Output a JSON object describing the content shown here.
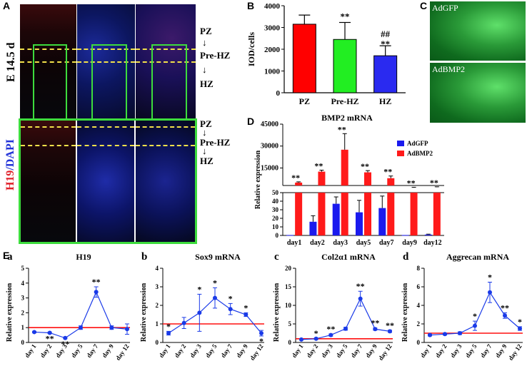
{
  "panel_labels": {
    "A": "A",
    "B": "B",
    "C": "C",
    "D": "D",
    "E": "E"
  },
  "panelA": {
    "side_label_stage": "E 14.5 d",
    "side_label_stain_h19": "H19",
    "side_label_stain_dapi": "/DAPI",
    "zones_top": [
      "PZ",
      "Pre-HZ",
      "HZ"
    ],
    "zones_bottom": [
      "PZ",
      "Pre-HZ",
      "HZ"
    ],
    "arrow": "↓",
    "colors": {
      "h19": "#e0202a",
      "dapi": "#2233d8",
      "box": "#3ddc3d",
      "dash": "#f2e04a"
    }
  },
  "panelB": {
    "chart_data": {
      "type": "bar",
      "categories": [
        "PZ",
        "Pre-HZ",
        "HZ"
      ],
      "values": [
        3150,
        2450,
        1700
      ],
      "errors": [
        420,
        780,
        460
      ],
      "colors": [
        "#ff0000",
        "#22ee22",
        "#2a2af0"
      ],
      "ylabel": "IOD/cells",
      "ylim": [
        0,
        4000
      ],
      "yticks": [
        "0",
        "1000",
        "2000",
        "3000",
        "4000"
      ],
      "annotations": [
        {
          "category": "Pre-HZ",
          "text": "**"
        },
        {
          "category": "HZ",
          "text": "##"
        },
        {
          "category": "HZ",
          "text": "**"
        }
      ]
    }
  },
  "panelC": {
    "labels": [
      "AdGFP",
      "AdBMP2"
    ]
  },
  "panelD": {
    "chart_data": {
      "type": "bar",
      "title": "BMP2 mRNA",
      "ylabel": "Relative expression",
      "categories": [
        "day1",
        "day2",
        "day3",
        "day5",
        "day7",
        "day9",
        "day12"
      ],
      "series": [
        {
          "name": "AdGFP",
          "color": "#1a1aee",
          "values": [
            0.5,
            16,
            37,
            27,
            32,
            0.5,
            1
          ],
          "errors": [
            0,
            7,
            8,
            14,
            14,
            0,
            0.5
          ]
        },
        {
          "name": "AdBMP2",
          "color": "#ff1a1a",
          "values": [
            5000,
            12500,
            27500,
            12000,
            8000,
            1500,
            1800
          ],
          "errors": [
            500,
            1000,
            11000,
            1200,
            1500,
            300,
            300
          ]
        }
      ],
      "broken_axis": true,
      "yticks_upper": [
        "15000",
        "30000",
        "45000"
      ],
      "yticks_lower": [
        "0",
        "10",
        "20",
        "30",
        "40",
        "50"
      ],
      "sig": [
        "**",
        "**",
        "**",
        "**",
        "**",
        "**",
        "**"
      ]
    }
  },
  "panelE": {
    "charts": [
      {
        "sub": "a",
        "title": "H19",
        "chart_data": {
          "type": "line",
          "ylabel": "Relative expression",
          "categories": [
            "day 1",
            "day 2",
            "day 3",
            "day 5",
            "day 7",
            "day 9",
            "day 12"
          ],
          "values": [
            0.7,
            0.65,
            0.3,
            1.0,
            3.4,
            1.0,
            0.9
          ],
          "errors": [
            0.05,
            0.05,
            0.05,
            0.12,
            0.35,
            0.12,
            0.35
          ],
          "ylim": [
            0,
            5
          ],
          "yticks": [
            "0",
            "1",
            "2",
            "3",
            "4",
            "5"
          ],
          "reference": 1,
          "sig": [
            "",
            "**",
            "**",
            "",
            "**",
            "",
            ""
          ]
        }
      },
      {
        "sub": "b",
        "title": "Sox9 mRNA",
        "chart_data": {
          "type": "line",
          "ylabel": "Relative expression",
          "categories": [
            "day 1",
            "day 2",
            "day 3",
            "day 5",
            "day 7",
            "day 9",
            "day 12"
          ],
          "values": [
            0.5,
            1.05,
            1.6,
            2.4,
            1.8,
            1.5,
            0.5
          ],
          "errors": [
            0.1,
            0.3,
            1.0,
            0.55,
            0.3,
            0.1,
            0.15
          ],
          "ylim": [
            0,
            4
          ],
          "yticks": [
            "0",
            "1",
            "2",
            "3",
            "4"
          ],
          "reference": 1,
          "sig": [
            "*",
            "",
            "*",
            "*",
            "*",
            "*",
            "*"
          ]
        }
      },
      {
        "sub": "c",
        "title": "Col2α1 mRNA",
        "chart_data": {
          "type": "line",
          "ylabel": "Relative expression",
          "categories": [
            "day 1",
            "day 2",
            "day 3",
            "day 5",
            "day 7",
            "day 9",
            "day 12"
          ],
          "values": [
            0.8,
            1.0,
            2.0,
            3.7,
            11.8,
            3.6,
            3.0
          ],
          "errors": [
            0.1,
            0.2,
            0.3,
            0.4,
            2.0,
            0.3,
            0.3
          ],
          "ylim": [
            0,
            20
          ],
          "yticks": [
            "0",
            "5",
            "10",
            "15",
            "20"
          ],
          "reference": 1,
          "sig": [
            "",
            "*",
            "**",
            "",
            "**",
            "**",
            "**"
          ]
        }
      },
      {
        "sub": "d",
        "title": "Aggrecan mRNA",
        "chart_data": {
          "type": "line",
          "ylabel": "Relative expression",
          "categories": [
            "day 1",
            "day 2",
            "day 3",
            "day 5",
            "day 7",
            "day 9",
            "day 12"
          ],
          "values": [
            0.8,
            0.9,
            1.0,
            1.8,
            5.4,
            2.9,
            1.5
          ],
          "errors": [
            0.1,
            0.1,
            0.15,
            0.5,
            1.1,
            0.3,
            0.2
          ],
          "ylim": [
            0,
            8
          ],
          "yticks": [
            "0",
            "2",
            "4",
            "6",
            "8"
          ],
          "reference": 1,
          "sig": [
            "",
            "",
            "",
            "*",
            "*",
            "**",
            "*"
          ]
        }
      }
    ]
  }
}
